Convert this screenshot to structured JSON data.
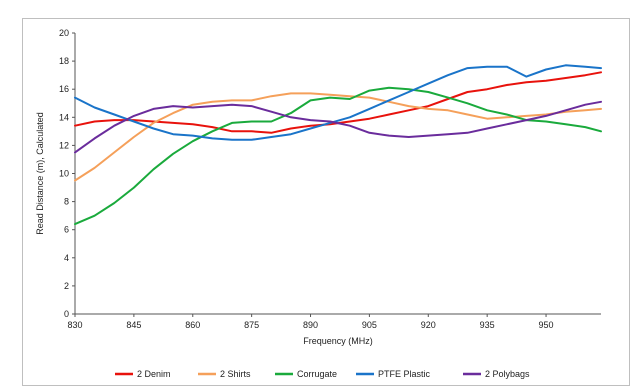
{
  "chart_data": {
    "type": "line",
    "title": "",
    "xlabel": "Frequency (MHz)",
    "ylabel": "Read Distance (m), Calculated",
    "xlim": [
      830,
      964
    ],
    "ylim": [
      0,
      20
    ],
    "x_ticks": [
      830,
      845,
      860,
      875,
      890,
      905,
      920,
      935,
      950
    ],
    "y_ticks": [
      0,
      2,
      4,
      6,
      8,
      10,
      12,
      14,
      16,
      18,
      20
    ],
    "x_tick_labels": [
      "830",
      "845",
      "860",
      "875",
      "890",
      "905",
      "920",
      "935",
      "950"
    ],
    "y_tick_labels": [
      "0",
      "2",
      "4",
      "6",
      "8",
      "10",
      "12",
      "14",
      "16",
      "18",
      "20"
    ],
    "grid": false,
    "legend_position": "bottom",
    "x": [
      830,
      835,
      840,
      845,
      850,
      855,
      860,
      865,
      870,
      875,
      880,
      885,
      890,
      895,
      900,
      905,
      910,
      915,
      920,
      925,
      930,
      935,
      940,
      945,
      950,
      955,
      960,
      964
    ],
    "series": [
      {
        "name": "2 Denim",
        "color": "#e8120c",
        "values": [
          13.4,
          13.7,
          13.8,
          13.8,
          13.7,
          13.6,
          13.5,
          13.3,
          13.0,
          13.0,
          12.9,
          13.2,
          13.4,
          13.5,
          13.7,
          13.9,
          14.2,
          14.5,
          14.8,
          15.3,
          15.8,
          16.0,
          16.3,
          16.5,
          16.6,
          16.8,
          17.0,
          17.2
        ]
      },
      {
        "name": "2 Shirts",
        "color": "#f5a05a",
        "values": [
          9.5,
          10.4,
          11.5,
          12.6,
          13.6,
          14.3,
          14.9,
          15.1,
          15.2,
          15.2,
          15.5,
          15.7,
          15.7,
          15.6,
          15.5,
          15.4,
          15.1,
          14.8,
          14.6,
          14.5,
          14.2,
          13.9,
          14.0,
          14.1,
          14.2,
          14.4,
          14.5,
          14.6
        ]
      },
      {
        "name": "Corrugate",
        "color": "#1aaa3c",
        "values": [
          6.4,
          7.0,
          7.9,
          9.0,
          10.3,
          11.4,
          12.3,
          13.0,
          13.6,
          13.7,
          13.7,
          14.3,
          15.2,
          15.4,
          15.3,
          15.9,
          16.1,
          16.0,
          15.8,
          15.4,
          15.0,
          14.5,
          14.2,
          13.8,
          13.7,
          13.5,
          13.3,
          13.0
        ]
      },
      {
        "name": "PTFE Plastic",
        "color": "#1a74c9",
        "values": [
          15.4,
          14.7,
          14.2,
          13.7,
          13.2,
          12.8,
          12.7,
          12.5,
          12.4,
          12.4,
          12.6,
          12.8,
          13.2,
          13.6,
          14.0,
          14.6,
          15.2,
          15.8,
          16.4,
          17.0,
          17.5,
          17.6,
          17.6,
          16.9,
          17.4,
          17.7,
          17.6,
          17.5
        ]
      },
      {
        "name": "2 Polybags",
        "color": "#6a2c9c",
        "values": [
          11.5,
          12.5,
          13.4,
          14.1,
          14.6,
          14.8,
          14.7,
          14.8,
          14.9,
          14.8,
          14.4,
          14.0,
          13.8,
          13.7,
          13.4,
          12.9,
          12.7,
          12.6,
          12.7,
          12.8,
          12.9,
          13.2,
          13.5,
          13.8,
          14.1,
          14.5,
          14.9,
          15.1
        ]
      }
    ]
  }
}
